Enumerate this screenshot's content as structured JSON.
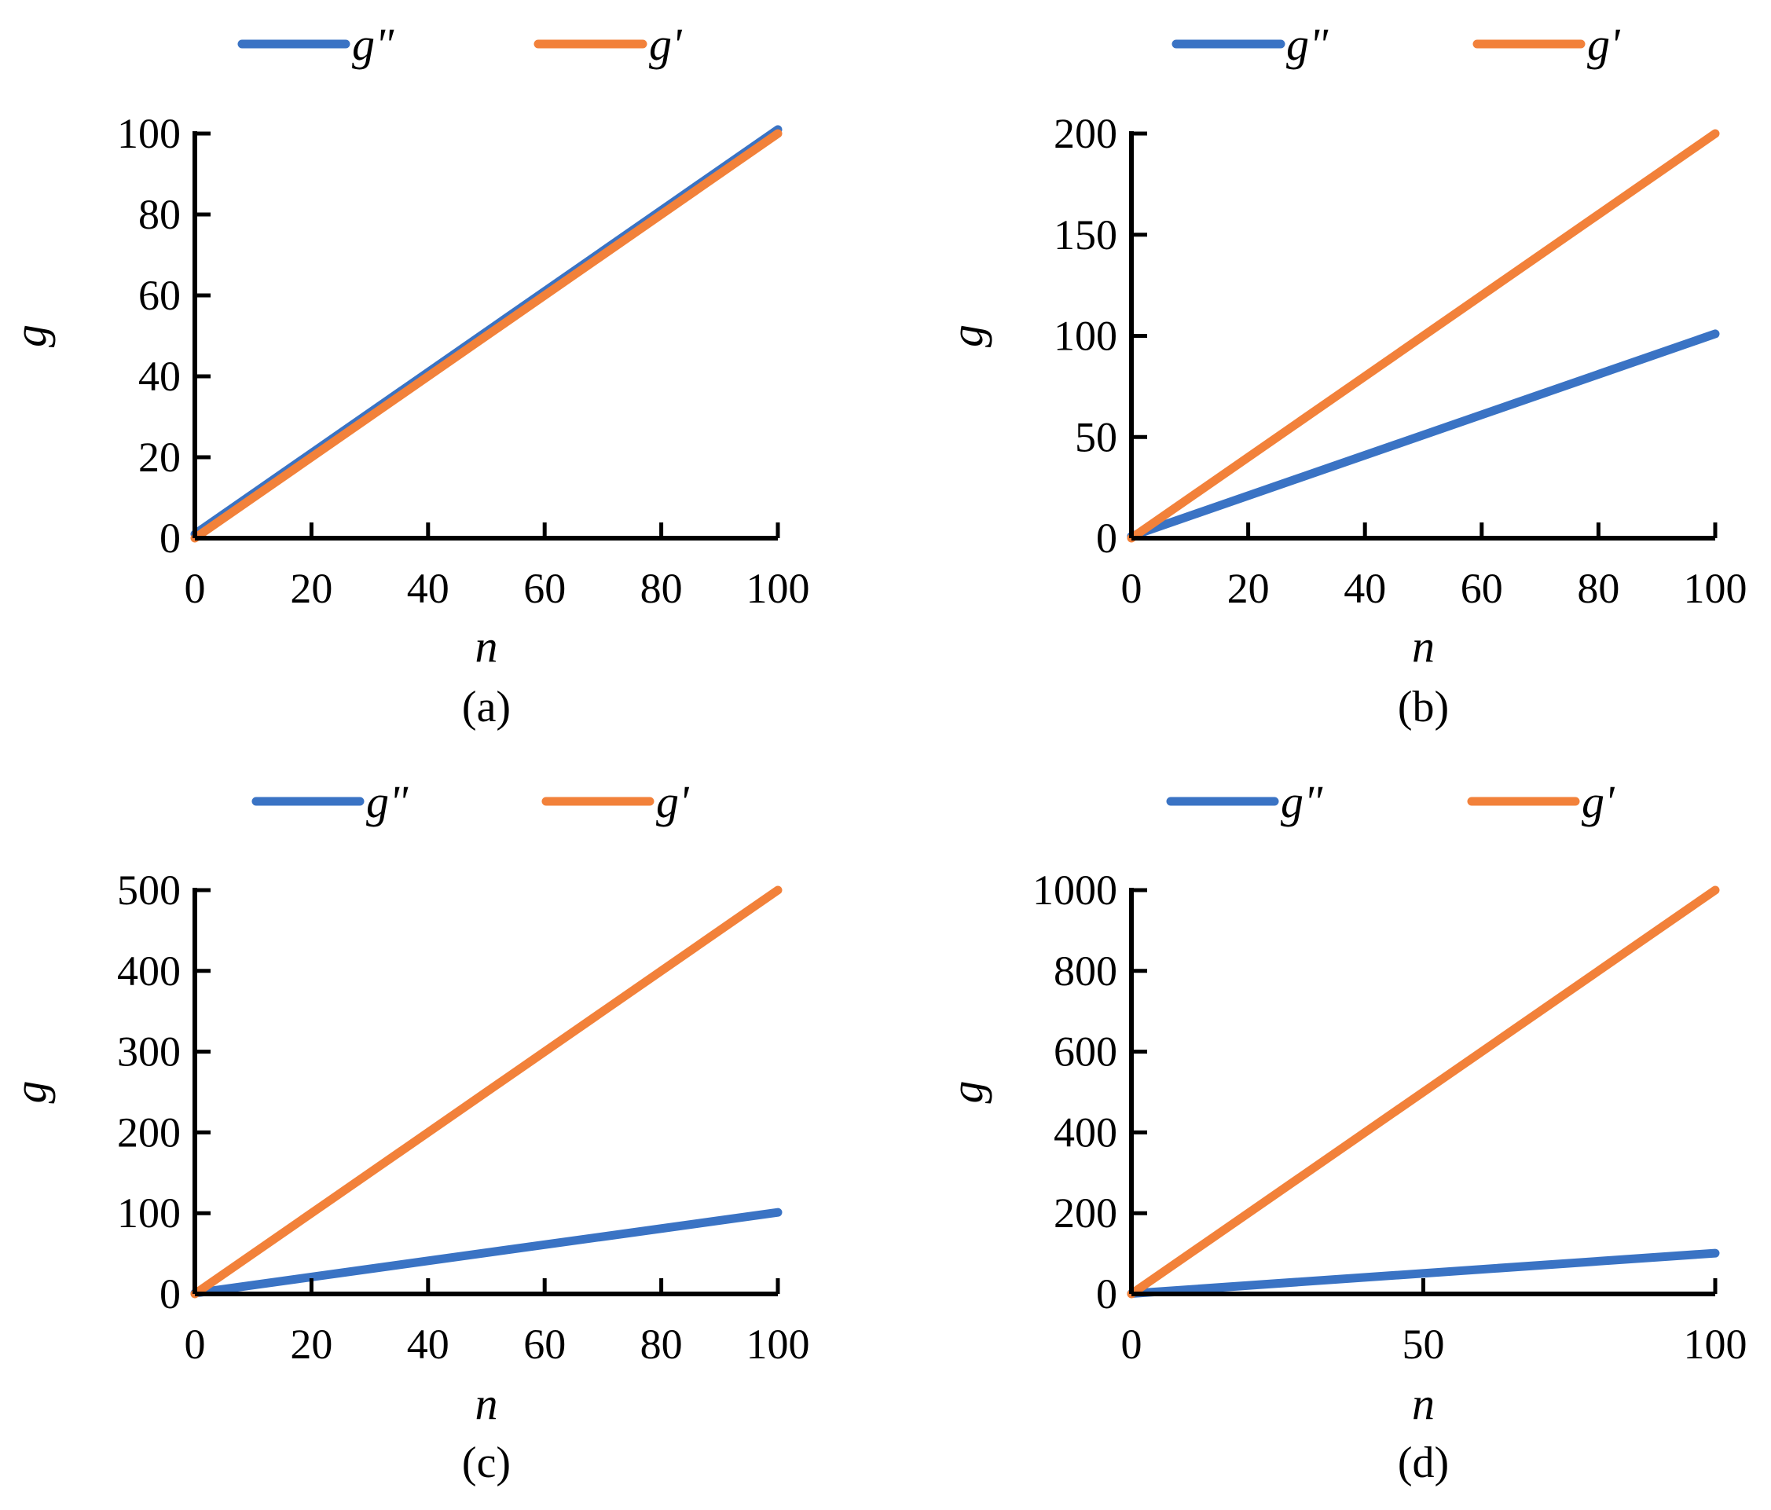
{
  "colors": {
    "g_double_prime": "#3a73c4",
    "g_prime": "#f2813a",
    "axis": "#000000"
  },
  "chart_data": [
    {
      "type": "line",
      "panel_label": "(a)",
      "xlabel": "n",
      "ylabel": "g",
      "xlim": [
        0,
        100
      ],
      "ylim": [
        0,
        100
      ],
      "x_ticks": [
        0,
        20,
        40,
        60,
        80,
        100
      ],
      "y_ticks": [
        0,
        20,
        40,
        60,
        80,
        100
      ],
      "x_tick_labels": [
        "0",
        "20",
        "40",
        "60",
        "80",
        "100"
      ],
      "y_tick_labels": [
        "0",
        "20",
        "40",
        "60",
        "80",
        "100"
      ],
      "legend_position": "top",
      "series": [
        {
          "name": "g\"",
          "color_key": "g_double_prime",
          "x": [
            0,
            100
          ],
          "y": [
            1,
            101
          ]
        },
        {
          "name": "g'",
          "color_key": "g_prime",
          "x": [
            0,
            100
          ],
          "y": [
            0,
            100
          ]
        }
      ]
    },
    {
      "type": "line",
      "panel_label": "(b)",
      "xlabel": "n",
      "ylabel": "g",
      "xlim": [
        0,
        100
      ],
      "ylim": [
        0,
        200
      ],
      "x_ticks": [
        0,
        20,
        40,
        60,
        80,
        100
      ],
      "y_ticks": [
        0,
        50,
        100,
        150,
        200
      ],
      "x_tick_labels": [
        "0",
        "20",
        "40",
        "60",
        "80",
        "100"
      ],
      "y_tick_labels": [
        "0",
        "50",
        "100",
        "150",
        "200"
      ],
      "legend_position": "top",
      "series": [
        {
          "name": "g\"",
          "color_key": "g_double_prime",
          "x": [
            0,
            100
          ],
          "y": [
            1,
            101
          ]
        },
        {
          "name": "g'",
          "color_key": "g_prime",
          "x": [
            0,
            100
          ],
          "y": [
            0,
            200
          ]
        }
      ]
    },
    {
      "type": "line",
      "panel_label": "(c)",
      "xlabel": "n",
      "ylabel": "g",
      "xlim": [
        0,
        100
      ],
      "ylim": [
        0,
        500
      ],
      "x_ticks": [
        0,
        20,
        40,
        60,
        80,
        100
      ],
      "y_ticks": [
        0,
        100,
        200,
        300,
        400,
        500
      ],
      "x_tick_labels": [
        "0",
        "20",
        "40",
        "60",
        "80",
        "100"
      ],
      "y_tick_labels": [
        "0",
        "100",
        "200",
        "300",
        "400",
        "500"
      ],
      "legend_position": "top",
      "series": [
        {
          "name": "g\"",
          "color_key": "g_double_prime",
          "x": [
            0,
            100
          ],
          "y": [
            1,
            101
          ]
        },
        {
          "name": "g'",
          "color_key": "g_prime",
          "x": [
            0,
            100
          ],
          "y": [
            0,
            500
          ]
        }
      ]
    },
    {
      "type": "line",
      "panel_label": "(d)",
      "xlabel": "n",
      "ylabel": "g",
      "xlim": [
        0,
        100
      ],
      "ylim": [
        0,
        1000
      ],
      "x_ticks": [
        0,
        50,
        100
      ],
      "y_ticks": [
        0,
        200,
        400,
        600,
        800,
        1000
      ],
      "x_tick_labels": [
        "0",
        "50",
        "100"
      ],
      "y_tick_labels": [
        "0",
        "200",
        "400",
        "600",
        "800",
        "1000"
      ],
      "legend_position": "top",
      "series": [
        {
          "name": "g\"",
          "color_key": "g_double_prime",
          "x": [
            0,
            100
          ],
          "y": [
            1,
            101
          ]
        },
        {
          "name": "g'",
          "color_key": "g_prime",
          "x": [
            0,
            100
          ],
          "y": [
            0,
            1000
          ]
        }
      ]
    }
  ]
}
